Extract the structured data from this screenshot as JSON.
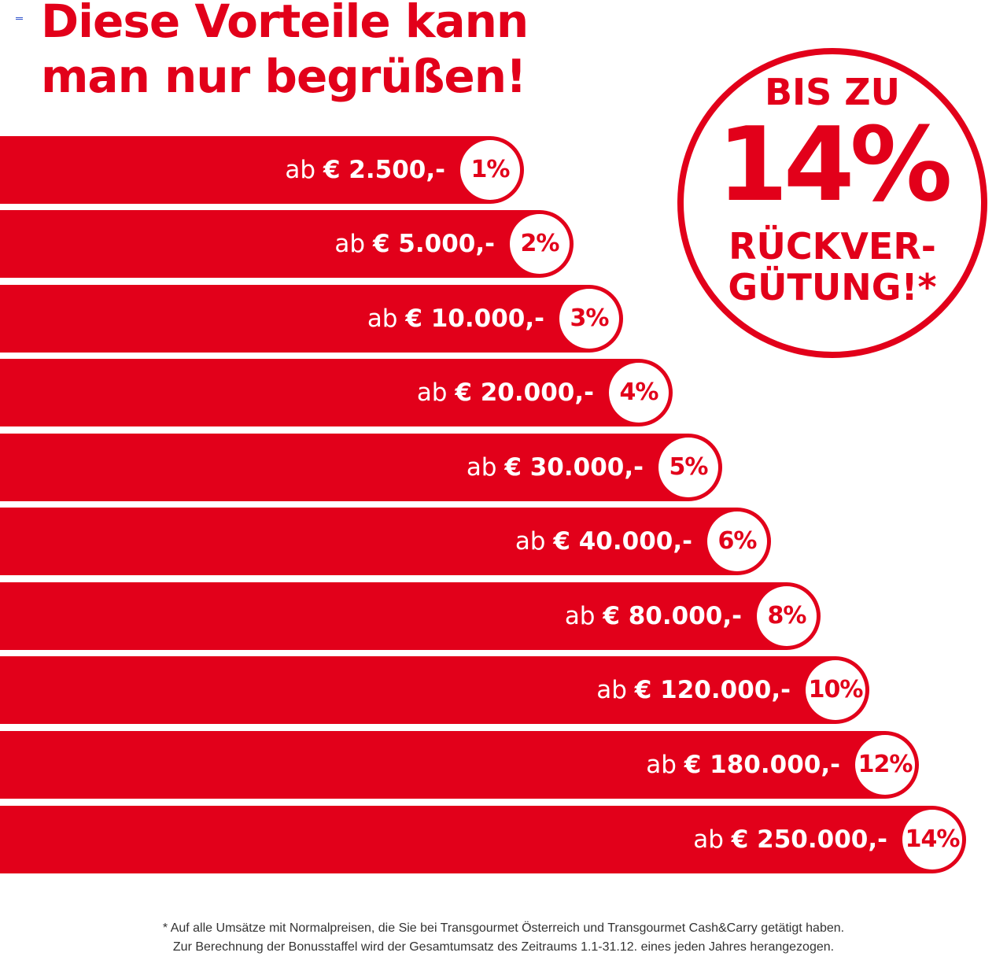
{
  "headline": {
    "line1": "Diese Vorteile kann",
    "line2": "man nur begrüßen!"
  },
  "badge": {
    "line1": "BIS ZU",
    "line2": "14%",
    "line3": "RÜCKVER-",
    "line4": "GÜTUNG!*"
  },
  "tiers": [
    {
      "prefix": "ab",
      "amount": "€ 2.500,-",
      "percent": "1%"
    },
    {
      "prefix": "ab",
      "amount": "€ 5.000,-",
      "percent": "2%"
    },
    {
      "prefix": "ab",
      "amount": "€ 10.000,-",
      "percent": "3%"
    },
    {
      "prefix": "ab",
      "amount": "€ 20.000,-",
      "percent": "4%"
    },
    {
      "prefix": "ab",
      "amount": "€ 30.000,-",
      "percent": "5%"
    },
    {
      "prefix": "ab",
      "amount": "€ 40.000,-",
      "percent": "6%"
    },
    {
      "prefix": "ab",
      "amount": "€ 80.000,-",
      "percent": "8%"
    },
    {
      "prefix": "ab",
      "amount": "€ 120.000,-",
      "percent": "10%"
    },
    {
      "prefix": "ab",
      "amount": "€ 180.000,-",
      "percent": "12%"
    },
    {
      "prefix": "ab",
      "amount": "€ 250.000,-",
      "percent": "14%"
    }
  ],
  "footnote": {
    "line1": "* Auf alle Umsätze mit Normalpreisen, die Sie bei Transgourmet Österreich und Transgourmet Cash&Carry getätigt haben.",
    "line2": "Zur Berechnung der Bonusstaffel wird der Gesamtumsatz des Zeitraums 1.1-31.12. eines jeden Jahres herangezogen."
  },
  "colors": {
    "brand_red": "#e2001a",
    "text_white": "#ffffff",
    "footnote_text": "#333333"
  }
}
